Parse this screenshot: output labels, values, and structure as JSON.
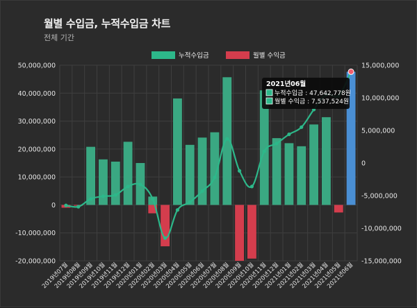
{
  "header": {
    "title": "월별 수입금, 누적수입금 차트",
    "subtitle": "전체 기간"
  },
  "colors": {
    "cumulative": "#2db88a",
    "cumulative_bar": "#3aa882",
    "monthly": "#d43d4d",
    "latest_bar": "#4a8fd4",
    "highlight_point": "#f25c6e",
    "grid": "#3f3f3f",
    "background": "#2b2b2b"
  },
  "chart_data": {
    "type": "bar",
    "title": "월별 수입금, 누적수입금 차트",
    "subtitle": "전체 기간",
    "categories": [
      "2019년07월",
      "2019년08월",
      "2019년09월",
      "2019년10월",
      "2019년11월",
      "2019년12월",
      "2020년01월",
      "2020년02월",
      "2020년03월",
      "2020년04월",
      "2020년05월",
      "2020년06월",
      "2020년07월",
      "2020년08월",
      "2020년09월",
      "2020년10월",
      "2020년11월",
      "2020년12월",
      "2021년01월",
      "2021년02월",
      "2021년03월",
      "2021년04월",
      "2021년05월",
      "2021년06월"
    ],
    "series": [
      {
        "name": "누적수입금",
        "kind": "bar",
        "axis": "left",
        "values": [
          -700000,
          -500000,
          20800000,
          16300000,
          15500000,
          22600000,
          15000000,
          3000000,
          -14800000,
          38100000,
          21500000,
          24100000,
          26000000,
          45700000,
          -4000000,
          -4000000,
          41000000,
          23900000,
          22100000,
          21000000,
          28800000,
          31400000,
          -3000000,
          47642778
        ]
      },
      {
        "name": "월별 수익금",
        "kind": "bar",
        "axis": "left",
        "values": [
          -1000000,
          -300000,
          0,
          0,
          0,
          0,
          0,
          -3000000,
          -14800000,
          0,
          0,
          0,
          0,
          0,
          -20000000,
          -19200000,
          0,
          0,
          0,
          0,
          0,
          0,
          -2700000,
          7537524
        ]
      },
      {
        "name": "누적수입금 (line)",
        "kind": "line",
        "axis": "right",
        "values": [
          -6500000,
          -6700000,
          -5500000,
          -5100000,
          -4900000,
          -3600000,
          -3300000,
          -5500000,
          -11500000,
          -7200000,
          -6000000,
          -4300000,
          -2200000,
          3700000,
          -1200000,
          -3600000,
          1800000,
          3000000,
          4400000,
          5500000,
          8200000,
          10500000,
          10300000,
          14000000
        ]
      }
    ],
    "y_left": {
      "min": -20000000,
      "max": 50000000,
      "ticks": [
        -20000000,
        -10000000,
        0,
        10000000,
        20000000,
        30000000,
        40000000,
        50000000
      ],
      "tick_labels": [
        "-20,000,000",
        "-10,000,000",
        "0",
        "10,000,000",
        "20,000,000",
        "30,000,000",
        "40,000,000",
        "50,000,000"
      ]
    },
    "y_right": {
      "min": -15000000,
      "max": 15000000,
      "ticks": [
        -15000000,
        -10000000,
        -5000000,
        0,
        5000000,
        10000000,
        15000000
      ],
      "tick_labels": [
        "-15,000,000",
        "-10,000,000",
        "-5,000,000",
        "0",
        "5,000,000",
        "10,000,000",
        "15,000,000"
      ]
    },
    "legend": {
      "position": "top-center",
      "items": [
        {
          "label": "누적수입금",
          "color": "#2db88a"
        },
        {
          "label": "월별 수익금",
          "color": "#d43d4d"
        }
      ]
    },
    "grid": true,
    "tooltip": {
      "title": "2021년06월",
      "lines": [
        "누적수입금 : 47,642,778원",
        "월별 수익금 : 7,537,524원"
      ]
    }
  }
}
